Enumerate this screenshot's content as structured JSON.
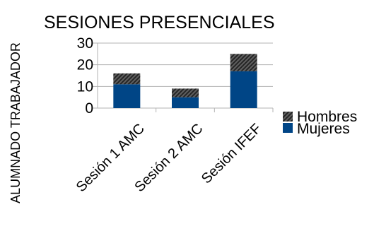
{
  "chart_data": {
    "type": "bar",
    "stacked": true,
    "title": "SESIONES PRESENCIALES",
    "xlabel": "",
    "ylabel": "ALUMNADO TRABAJADOR",
    "categories": [
      "Sesión 1 AMC",
      "Sesión 2 AMC",
      "Sesión IFEF"
    ],
    "series": [
      {
        "name": "Mujeres",
        "values": [
          11,
          5,
          17
        ],
        "color": "#004586",
        "fill": "solid"
      },
      {
        "name": "Hombres",
        "values": [
          5,
          4,
          8
        ],
        "color": "#222222",
        "fill": "hatched"
      }
    ],
    "ylim": [
      0,
      30
    ],
    "yticks": [
      0,
      10,
      20,
      30
    ],
    "grid": true,
    "legend_position": "right",
    "legend_order": [
      "Hombres",
      "Mujeres"
    ]
  }
}
